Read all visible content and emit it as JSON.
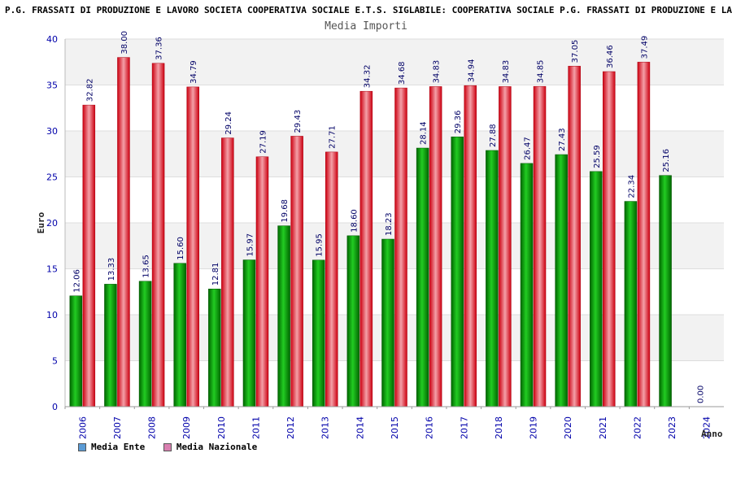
{
  "page_title": "P.G. FRASSATI DI PRODUZIONE E LAVORO SOCIETA COOPERATIVA SOCIALE E.T.S. SIGLABILE: COOPERATIVA SOCIALE P.G. FRASSATI DI PRODUZIONE E LAVORO S.C.S.",
  "chart_data": {
    "type": "bar",
    "title": "Media Importi",
    "xlabel": "Anno",
    "ylabel": "Euro",
    "ylim": [
      0,
      40
    ],
    "yticks": [
      0,
      5,
      10,
      15,
      20,
      25,
      30,
      35,
      40
    ],
    "grid": "horizontal bands",
    "legend_position": "bottom-left",
    "categories": [
      "2006",
      "2007",
      "2008",
      "2009",
      "2010",
      "2011",
      "2012",
      "2013",
      "2014",
      "2015",
      "2016",
      "2017",
      "2018",
      "2019",
      "2020",
      "2021",
      "2022",
      "2023",
      "2024"
    ],
    "series": [
      {
        "name": "Media Ente",
        "color": "#00aa00",
        "legend_color": "#5b9bd5",
        "values": [
          12.06,
          13.33,
          13.65,
          15.6,
          12.81,
          15.97,
          19.68,
          15.95,
          18.6,
          18.23,
          28.14,
          29.36,
          27.88,
          26.47,
          27.43,
          25.59,
          22.34,
          25.16,
          0.0
        ],
        "labels": [
          "12.06",
          "13.33",
          "13.65",
          "15.60",
          "12.81",
          "15.97",
          "19.68",
          "15.95",
          "18.60",
          "18.23",
          "28.14",
          "29.36",
          "27.88",
          "26.47",
          "27.43",
          "25.59",
          "22.34",
          "25.16",
          "0.00"
        ]
      },
      {
        "name": "Media Nazionale",
        "color": "#e8202a",
        "legend_color": "#d97fb0",
        "values": [
          32.82,
          38.0,
          37.36,
          34.79,
          29.24,
          27.19,
          29.43,
          27.71,
          34.32,
          34.68,
          34.83,
          34.94,
          34.83,
          34.85,
          37.05,
          36.46,
          37.49,
          null,
          null
        ],
        "labels": [
          "32.82",
          "38.00",
          "37.36",
          "34.79",
          "29.24",
          "27.19",
          "29.43",
          "27.71",
          "34.32",
          "34.68",
          "34.83",
          "34.94",
          "34.83",
          "34.85",
          "37.05",
          "36.46",
          "37.49",
          null,
          null
        ]
      }
    ]
  }
}
